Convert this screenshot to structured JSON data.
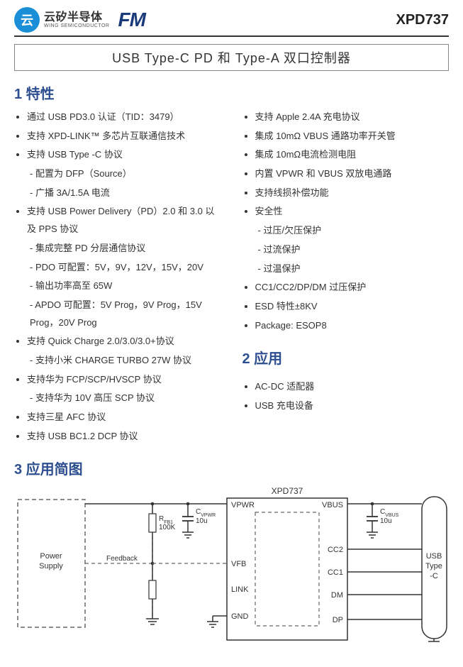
{
  "header": {
    "wing_cn": "云矽半导体",
    "wing_en": "WING SEMICONDUCTOR",
    "fm": "FM",
    "part": "XPD737"
  },
  "title": "USB Type-C PD 和 Type-A 双口控制器",
  "sections": {
    "features": "1 特性",
    "applications": "2 应用",
    "app_diagram": "3 应用简图"
  },
  "features_left": [
    {
      "t": "通过 USB PD3.0 认证（TID：3479）"
    },
    {
      "t": "支持 XPD-LINK™ 多芯片互联通信技术"
    },
    {
      "t": "支持 USB Type -C 协议",
      "sub": [
        "配置为 DFP（Source）",
        "广播 3A/1.5A 电流"
      ]
    },
    {
      "t": "支持 USB Power Delivery（PD）2.0 和 3.0 以及 PPS 协议",
      "sub": [
        "集成完整 PD 分层通信协议",
        "PDO 可配置：5V，9V，12V，15V，20V",
        "输出功率高至 65W",
        "APDO 可配置：5V Prog，9V Prog，15V Prog，20V Prog"
      ]
    },
    {
      "t": "支持 Quick Charge 2.0/3.0/3.0+协议",
      "sub": [
        "支持小米 CHARGE TURBO 27W 协议"
      ]
    },
    {
      "t": "支持华为 FCP/SCP/HVSCP 协议",
      "sub": [
        "支持华为 10V 高压 SCP 协议"
      ]
    },
    {
      "t": "支持三星 AFC 协议"
    },
    {
      "t": "支持 USB BC1.2 DCP 协议"
    }
  ],
  "features_right": [
    {
      "t": "支持 Apple 2.4A 充电协议"
    },
    {
      "t": "集成 10mΩ  VBUS 通路功率开关管"
    },
    {
      "t": "集成 10mΩ电流检测电阻"
    },
    {
      "t": "内置 VPWR 和 VBUS 双放电通路"
    },
    {
      "t": "支持线损补偿功能"
    },
    {
      "t": "安全性",
      "sub": [
        "过压/欠压保护",
        "过流保护",
        "过温保护"
      ]
    },
    {
      "t": "CC1/CC2/DP/DM 过压保护"
    },
    {
      "t": "ESD 特性±8KV"
    },
    {
      "t": "Package: ESOP8"
    }
  ],
  "applications": [
    "AC-DC 适配器",
    "USB 充电设备"
  ],
  "diagram": {
    "chip_name": "XPD737",
    "power_supply": "Power\nSupply",
    "feedback": "Feedback",
    "usb": "USB\nType\n-C",
    "rfb1": "R_FB1",
    "rfb1_val": "100K",
    "cvpwr": "C_VPWR",
    "cvpwr_val": "10u",
    "cvbus": "C_VBUS",
    "cvbus_val": "10u",
    "pins_left": [
      "VPWR",
      "VFB",
      "LINK",
      "GND"
    ],
    "pins_right": [
      "VBUS",
      "CC2",
      "CC1",
      "DM",
      "DP"
    ],
    "colors": {
      "stroke": "#333333",
      "dash": "#666666"
    }
  }
}
